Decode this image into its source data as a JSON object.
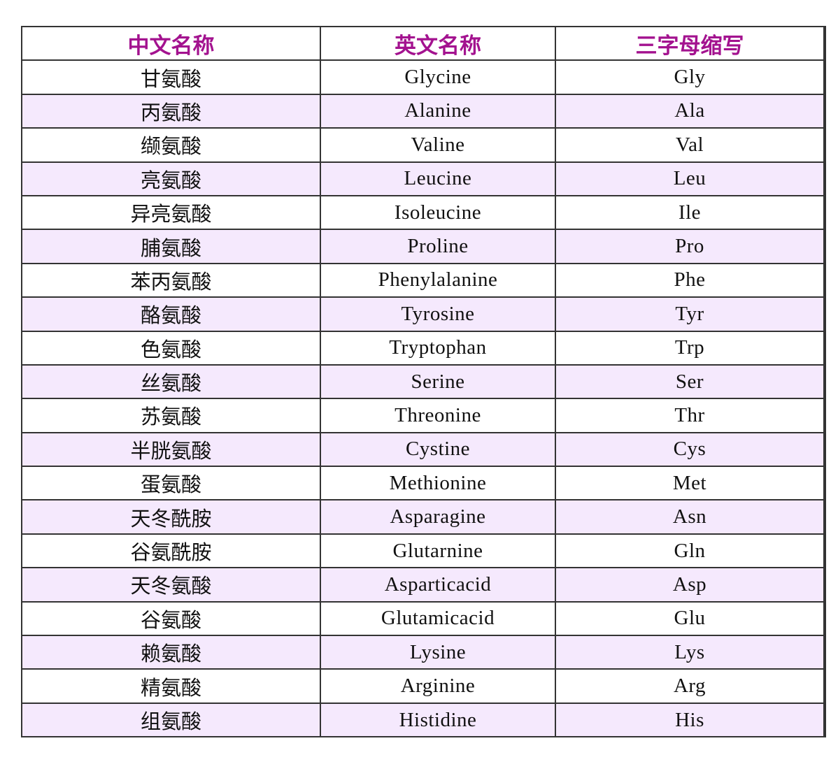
{
  "table": {
    "headers": [
      "中文名称",
      "英文名称",
      "三字母缩写"
    ],
    "rows": [
      [
        "甘氨酸",
        "Glycine",
        "Gly"
      ],
      [
        "丙氨酸",
        "Alanine",
        "Ala"
      ],
      [
        "缬氨酸",
        "Valine",
        "Val"
      ],
      [
        "亮氨酸",
        "Leucine",
        "Leu"
      ],
      [
        "异亮氨酸",
        "Isoleucine",
        "Ile"
      ],
      [
        "脯氨酸",
        "Proline",
        "Pro"
      ],
      [
        "苯丙氨酸",
        "Phenylalanine",
        "Phe"
      ],
      [
        "酪氨酸",
        "Tyrosine",
        "Tyr"
      ],
      [
        "色氨酸",
        "Tryptophan",
        "Trp"
      ],
      [
        "丝氨酸",
        "Serine",
        "Ser"
      ],
      [
        "苏氨酸",
        "Threonine",
        "Thr"
      ],
      [
        "半胱氨酸",
        "Cystine",
        "Cys"
      ],
      [
        "蛋氨酸",
        "Methionine",
        "Met"
      ],
      [
        "天冬酰胺",
        "Asparagine",
        "Asn"
      ],
      [
        "谷氨酰胺",
        "Glutarnine",
        "Gln"
      ],
      [
        "天冬氨酸",
        "Asparticacid",
        "Asp"
      ],
      [
        "谷氨酸",
        "Glutamicacid",
        "Glu"
      ],
      [
        "赖氨酸",
        "Lysine",
        "Lys"
      ],
      [
        "精氨酸",
        "Arginine",
        "Arg"
      ],
      [
        "组氨酸",
        "Histidine",
        "His"
      ]
    ]
  },
  "colors": {
    "header_text": "#a3128f",
    "alt_row": "#f5e9fd"
  }
}
